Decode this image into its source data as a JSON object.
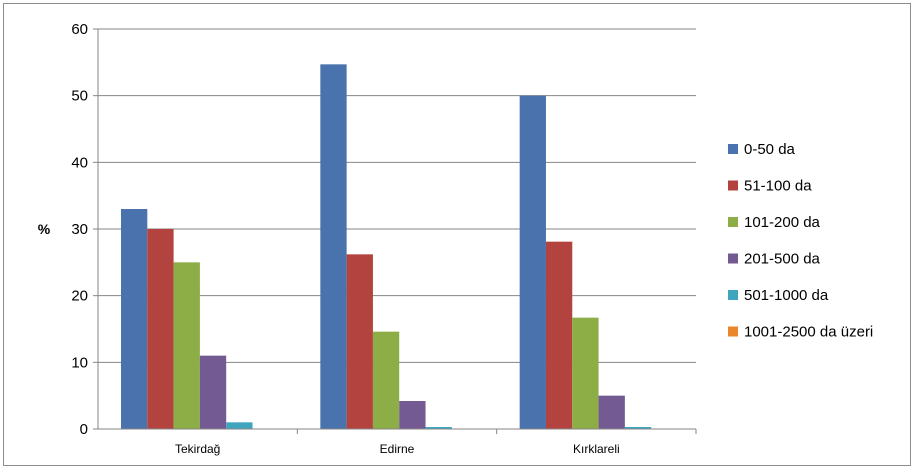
{
  "chart_data": {
    "type": "bar",
    "title": "",
    "xlabel": "",
    "ylabel": "%",
    "ylim": [
      0,
      60
    ],
    "yticks": [
      0,
      10,
      20,
      30,
      40,
      50,
      60
    ],
    "grid": true,
    "legend_position": "right",
    "categories": [
      "Tekirdağ",
      "Edirne",
      "Kırklareli"
    ],
    "series": [
      {
        "name": "0-50 da",
        "color": "#4a73ad",
        "values": [
          33.0,
          54.7,
          50.0
        ]
      },
      {
        "name": "51-100 da",
        "color": "#b2433f",
        "values": [
          30.0,
          26.2,
          28.1
        ]
      },
      {
        "name": "101-200 da",
        "color": "#8dad47",
        "values": [
          25.0,
          14.6,
          16.7
        ]
      },
      {
        "name": "201-500 da",
        "color": "#735a93",
        "values": [
          11.0,
          4.2,
          5.0
        ]
      },
      {
        "name": "501-1000 da",
        "color": "#3fa5bf",
        "values": [
          1.0,
          0.3,
          0.3
        ]
      },
      {
        "name": "1001-2500 da üzeri",
        "color": "#e9872e",
        "values": [
          0.0,
          0.0,
          0.0
        ]
      }
    ]
  }
}
